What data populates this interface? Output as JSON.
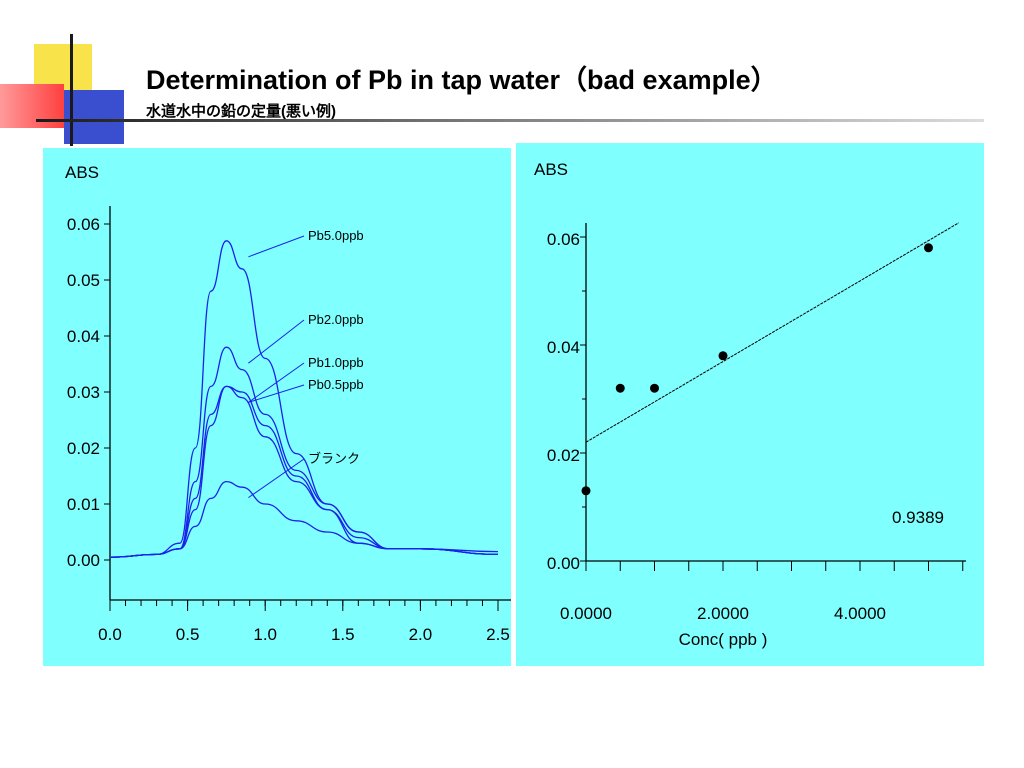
{
  "slide": {
    "title": "Determination of Pb in tap water（bad example）",
    "subtitle": "水道水中の鉛の定量(悪い例)",
    "colors": {
      "panel_bg": "#80ffff",
      "curve": "#1a24e8",
      "accent_yellow": "#f8e44a",
      "accent_blue": "#3a4fd0",
      "accent_red": "#ff4040"
    }
  },
  "chart_data": [
    {
      "type": "line",
      "title": "",
      "xlabel": "",
      "ylabel": "ABS",
      "xlim": [
        0.0,
        2.5
      ],
      "ylim": [
        0.0,
        0.06
      ],
      "x_ticks": [
        "0.0",
        "0.5",
        "1.0",
        "1.5",
        "2.0",
        "2.5"
      ],
      "y_ticks": [
        "0.00",
        "0.01",
        "0.02",
        "0.03",
        "0.04",
        "0.05",
        "0.06"
      ],
      "x": [
        0.0,
        0.3,
        0.45,
        0.55,
        0.65,
        0.75,
        0.85,
        1.0,
        1.2,
        1.4,
        1.6,
        1.8,
        2.0,
        2.5
      ],
      "series": [
        {
          "name": "Pb5.0ppb",
          "values": [
            0.0005,
            0.001,
            0.003,
            0.02,
            0.048,
            0.057,
            0.052,
            0.036,
            0.019,
            0.01,
            0.005,
            0.002,
            0.002,
            0.001
          ]
        },
        {
          "name": "Pb2.0ppb",
          "values": [
            0.0005,
            0.001,
            0.002,
            0.014,
            0.031,
            0.038,
            0.034,
            0.026,
            0.016,
            0.01,
            0.005,
            0.002,
            0.002,
            0.001
          ]
        },
        {
          "name": "Pb1.0ppb",
          "values": [
            0.0005,
            0.001,
            0.002,
            0.011,
            0.026,
            0.031,
            0.03,
            0.024,
            0.015,
            0.009,
            0.004,
            0.002,
            0.002,
            0.001
          ]
        },
        {
          "name": "Pb0.5ppb",
          "values": [
            0.0005,
            0.001,
            0.002,
            0.009,
            0.024,
            0.031,
            0.029,
            0.022,
            0.014,
            0.009,
            0.003,
            0.002,
            0.002,
            0.001
          ]
        },
        {
          "name": "ブランク",
          "values": [
            0.0005,
            0.001,
            0.002,
            0.006,
            0.011,
            0.014,
            0.013,
            0.01,
            0.007,
            0.005,
            0.003,
            0.002,
            0.002,
            0.0015
          ]
        }
      ]
    },
    {
      "type": "scatter",
      "title": "",
      "xlabel": "Conc( ppb )",
      "ylabel": "ABS",
      "xlim": [
        0.0,
        5.5
      ],
      "ylim": [
        0.0,
        0.06
      ],
      "x_ticks": [
        "0.0000",
        "2.0000",
        "4.0000"
      ],
      "y_ticks": [
        "0.00",
        "0.02",
        "0.04",
        "0.06"
      ],
      "points": [
        {
          "x": 0.0,
          "y": 0.013
        },
        {
          "x": 0.5,
          "y": 0.032
        },
        {
          "x": 1.0,
          "y": 0.032
        },
        {
          "x": 2.0,
          "y": 0.038
        },
        {
          "x": 5.0,
          "y": 0.058
        }
      ],
      "fit_line": {
        "x": [
          0.0,
          5.5
        ],
        "y": [
          0.022,
          0.063
        ]
      },
      "annotation": "0.9389"
    }
  ]
}
